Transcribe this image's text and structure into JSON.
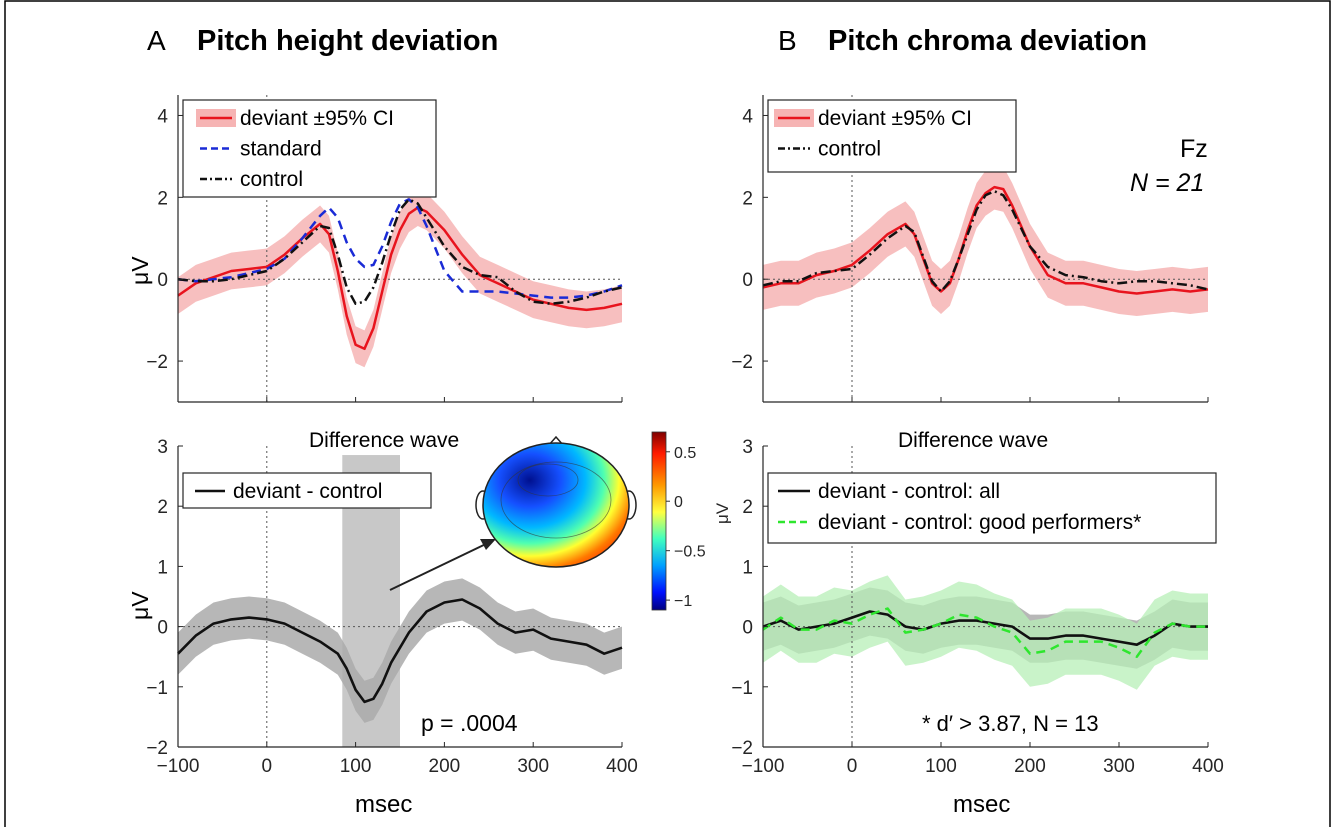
{
  "panels": {
    "A": {
      "letter": "A",
      "title": "Pitch height deviation"
    },
    "B": {
      "letter": "B",
      "title": "Pitch chroma deviation"
    }
  },
  "labels": {
    "electrode": "Fz",
    "n_label": "N = 21",
    "xlabel": "msec",
    "ylabel": "μV",
    "difference_wave": "Difference wave",
    "p_value": "p = .0004",
    "good_perf_note": "* d′ > 3.87, N = 13"
  },
  "colors": {
    "deviant": "#e8141e",
    "deviant_ci": "#f6b4b4",
    "standard": "#1a2bd6",
    "control": "#111111",
    "diff": "#111111",
    "diff_ci": "#aaaaaa",
    "good": "#2ee62e",
    "good_ci": "#b7efb7",
    "sig_window": "#c8c8c8"
  },
  "chart_data": [
    {
      "id": "A-top",
      "type": "line",
      "title": "Pitch height deviation",
      "xlabel": "",
      "ylabel": "μV",
      "xlim": [
        -100,
        400
      ],
      "ylim": [
        -3,
        4.5
      ],
      "xticks": [
        -100,
        0,
        100,
        200,
        300,
        400
      ],
      "yticks": [
        -2,
        0,
        2,
        4
      ],
      "legend": {
        "position": "top-left",
        "entries": [
          "deviant ±95% CI",
          "standard",
          "control"
        ]
      },
      "x": [
        -100,
        -80,
        -60,
        -40,
        -20,
        0,
        20,
        40,
        60,
        70,
        80,
        90,
        100,
        110,
        120,
        130,
        140,
        150,
        160,
        170,
        180,
        200,
        220,
        240,
        260,
        280,
        300,
        320,
        340,
        360,
        380,
        400
      ],
      "series": [
        {
          "name": "deviant ±95% CI",
          "style": "solid",
          "color_key": "deviant",
          "values": [
            -0.4,
            -0.1,
            0.05,
            0.2,
            0.25,
            0.3,
            0.6,
            1.0,
            1.35,
            1.1,
            0.2,
            -0.9,
            -1.6,
            -1.7,
            -1.2,
            -0.3,
            0.6,
            1.2,
            1.6,
            1.75,
            1.65,
            1.2,
            0.6,
            0.1,
            -0.1,
            -0.3,
            -0.5,
            -0.6,
            -0.7,
            -0.75,
            -0.7,
            -0.6
          ],
          "ci_halfwidth": 0.45
        },
        {
          "name": "standard",
          "style": "dashed",
          "color_key": "standard",
          "values": [
            0.0,
            -0.05,
            0.0,
            0.05,
            0.15,
            0.25,
            0.5,
            1.0,
            1.55,
            1.75,
            1.5,
            0.9,
            0.5,
            0.3,
            0.35,
            0.8,
            1.4,
            1.85,
            1.95,
            1.75,
            1.3,
            0.2,
            -0.3,
            -0.3,
            -0.3,
            -0.35,
            -0.4,
            -0.45,
            -0.45,
            -0.4,
            -0.3,
            -0.15
          ]
        },
        {
          "name": "control",
          "style": "dashdot",
          "color_key": "control",
          "values": [
            0.0,
            -0.05,
            -0.05,
            0.0,
            0.1,
            0.2,
            0.5,
            0.9,
            1.3,
            1.25,
            0.6,
            -0.2,
            -0.6,
            -0.55,
            -0.2,
            0.4,
            1.1,
            1.7,
            1.95,
            1.85,
            1.5,
            0.8,
            0.3,
            0.1,
            0.05,
            -0.3,
            -0.55,
            -0.6,
            -0.55,
            -0.45,
            -0.3,
            -0.2
          ]
        }
      ]
    },
    {
      "id": "B-top",
      "type": "line",
      "title": "Pitch chroma deviation",
      "xlabel": "",
      "ylabel": "",
      "xlim": [
        -100,
        400
      ],
      "ylim": [
        -3,
        4.5
      ],
      "xticks": [
        -100,
        0,
        100,
        200,
        300,
        400
      ],
      "yticks": [
        -2,
        0,
        2,
        4
      ],
      "legend": {
        "position": "top-left",
        "entries": [
          "deviant ±95% CI",
          "control"
        ]
      },
      "x": [
        -100,
        -80,
        -60,
        -40,
        -20,
        0,
        20,
        40,
        60,
        70,
        80,
        90,
        100,
        110,
        120,
        130,
        140,
        150,
        160,
        170,
        180,
        200,
        220,
        240,
        260,
        280,
        300,
        320,
        340,
        360,
        380,
        400
      ],
      "series": [
        {
          "name": "deviant ±95% CI",
          "style": "solid",
          "color_key": "deviant",
          "values": [
            -0.2,
            -0.1,
            -0.1,
            0.1,
            0.2,
            0.35,
            0.7,
            1.1,
            1.35,
            1.1,
            0.5,
            -0.1,
            -0.3,
            -0.1,
            0.5,
            1.2,
            1.8,
            2.1,
            2.25,
            2.2,
            1.8,
            0.8,
            0.1,
            -0.1,
            -0.1,
            -0.2,
            -0.3,
            -0.35,
            -0.3,
            -0.25,
            -0.3,
            -0.25
          ],
          "ci_halfwidth": 0.55
        },
        {
          "name": "control",
          "style": "dashdot",
          "color_key": "control",
          "values": [
            -0.15,
            -0.05,
            -0.05,
            0.15,
            0.2,
            0.25,
            0.6,
            1.0,
            1.3,
            1.15,
            0.55,
            -0.05,
            -0.3,
            -0.05,
            0.5,
            1.1,
            1.7,
            2.05,
            2.15,
            2.05,
            1.7,
            0.8,
            0.3,
            0.1,
            0.05,
            -0.05,
            -0.1,
            -0.05,
            -0.05,
            -0.1,
            -0.15,
            -0.25
          ]
        }
      ]
    },
    {
      "id": "A-bottom",
      "type": "line",
      "title": "Difference wave",
      "xlabel": "msec",
      "ylabel": "μV",
      "xlim": [
        -100,
        400
      ],
      "ylim": [
        -2,
        3
      ],
      "xticks": [
        -100,
        0,
        100,
        200,
        300,
        400
      ],
      "yticks": [
        -2,
        -1,
        0,
        1,
        2,
        3
      ],
      "legend": {
        "position": "top-left",
        "entries": [
          "deviant - control"
        ]
      },
      "significance_window": [
        85,
        150
      ],
      "x": [
        -100,
        -80,
        -60,
        -40,
        -20,
        0,
        20,
        40,
        60,
        80,
        90,
        100,
        110,
        120,
        130,
        140,
        160,
        180,
        200,
        220,
        240,
        260,
        280,
        300,
        320,
        340,
        360,
        380,
        400
      ],
      "series": [
        {
          "name": "deviant - control",
          "style": "solid",
          "color_key": "diff",
          "values": [
            -0.45,
            -0.15,
            0.05,
            0.12,
            0.15,
            0.12,
            0.05,
            -0.1,
            -0.25,
            -0.45,
            -0.7,
            -1.05,
            -1.25,
            -1.2,
            -0.95,
            -0.6,
            -0.1,
            0.25,
            0.4,
            0.45,
            0.3,
            0.05,
            -0.1,
            -0.05,
            -0.2,
            -0.25,
            -0.3,
            -0.45,
            -0.35
          ],
          "ci_halfwidth": 0.35
        }
      ],
      "colorbar": {
        "label": "μV",
        "ticks": [
          0.5,
          0,
          -0.5,
          -1
        ],
        "range": [
          -1.1,
          0.7
        ]
      }
    },
    {
      "id": "B-bottom",
      "type": "line",
      "title": "Difference wave",
      "xlabel": "msec",
      "ylabel": "",
      "xlim": [
        -100,
        400
      ],
      "ylim": [
        -2,
        3
      ],
      "xticks": [
        -100,
        0,
        100,
        200,
        300,
        400
      ],
      "yticks": [
        -2,
        -1,
        0,
        1,
        2,
        3
      ],
      "legend": {
        "position": "top-left",
        "entries": [
          "deviant - control: all",
          "deviant - control: good performers*"
        ]
      },
      "x": [
        -100,
        -80,
        -60,
        -40,
        -20,
        0,
        20,
        40,
        60,
        80,
        100,
        120,
        140,
        160,
        180,
        200,
        220,
        240,
        260,
        280,
        300,
        320,
        340,
        360,
        380,
        400
      ],
      "series": [
        {
          "name": "deviant - control: all",
          "style": "solid",
          "color_key": "diff",
          "values": [
            0.0,
            0.1,
            -0.05,
            0.0,
            0.05,
            0.15,
            0.25,
            0.2,
            0.0,
            -0.05,
            0.05,
            0.1,
            0.1,
            0.05,
            0.0,
            -0.2,
            -0.2,
            -0.15,
            -0.15,
            -0.2,
            -0.25,
            -0.3,
            -0.15,
            0.05,
            0.0,
            0.0
          ],
          "ci_halfwidth": 0.4
        },
        {
          "name": "deviant - control: good performers*",
          "style": "dashed",
          "color_key": "good",
          "values": [
            -0.05,
            0.15,
            -0.05,
            -0.05,
            0.1,
            0.05,
            0.2,
            0.3,
            -0.1,
            -0.05,
            0.05,
            0.2,
            0.15,
            0.0,
            -0.1,
            -0.45,
            -0.4,
            -0.25,
            -0.25,
            -0.25,
            -0.35,
            -0.5,
            -0.1,
            0.05,
            0.0,
            0.0
          ],
          "ci_halfwidth": 0.55
        }
      ]
    }
  ]
}
